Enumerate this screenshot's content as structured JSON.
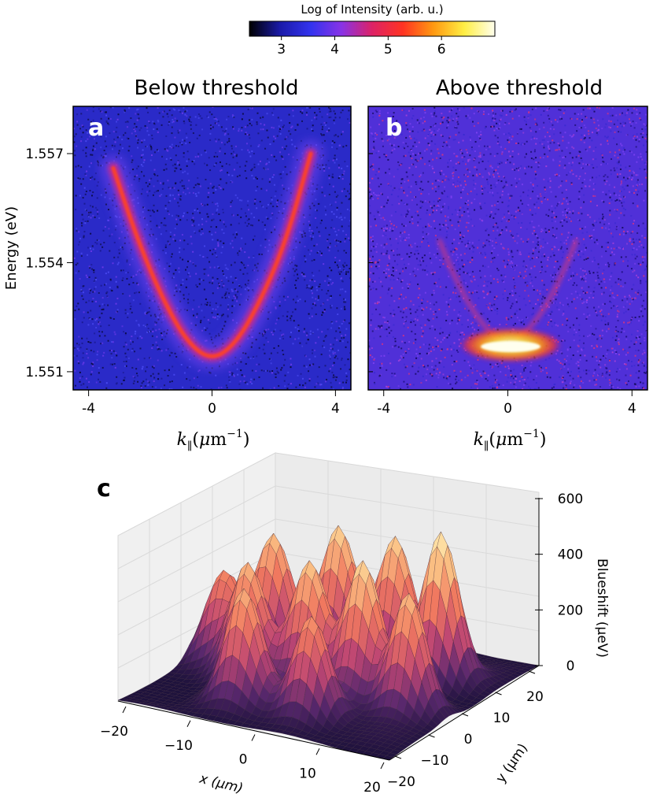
{
  "chart_data": [
    {
      "type": "heatmap",
      "colorbar": {
        "title": "Log of Intensity (arb. u.)",
        "range": [
          2.4,
          7.0
        ],
        "ticks": [
          "3",
          "4",
          "5",
          "6"
        ],
        "tick_values": [
          3,
          4,
          5,
          6
        ],
        "colormap": [
          "#000000",
          "#1a1aa8",
          "#3333ee",
          "#8833e6",
          "#dd2266",
          "#ff3322",
          "#ff9911",
          "#ffee44",
          "#ffffee"
        ]
      }
    },
    {
      "type": "heatmap",
      "panel": "a",
      "title": "Below threshold",
      "xlabel": "k_∥(μm⁻¹)",
      "ylabel": "Energy (eV)",
      "xlim": [
        -4.5,
        4.5
      ],
      "ylim": [
        1.5505,
        1.5583
      ],
      "x_ticks": [
        "-4",
        "0",
        "4"
      ],
      "x_tick_values": [
        -4,
        0,
        4
      ],
      "y_ticks": [
        "1.551",
        "1.554",
        "1.557"
      ],
      "y_tick_values": [
        1.551,
        1.554,
        1.557
      ],
      "dispersion": {
        "E0": 1.5513,
        "k_range": [
          -3.2,
          3.2
        ],
        "points": [
          {
            "k": -3.2,
            "E": 1.5566
          },
          {
            "k": -2.4,
            "E": 1.5546
          },
          {
            "k": -1.6,
            "E": 1.553
          },
          {
            "k": -0.8,
            "E": 1.5518
          },
          {
            "k": 0,
            "E": 1.5513
          },
          {
            "k": 0.8,
            "E": 1.5518
          },
          {
            "k": 1.6,
            "E": 1.553
          },
          {
            "k": 2.4,
            "E": 1.5546
          },
          {
            "k": 3.2,
            "E": 1.557
          }
        ]
      }
    },
    {
      "type": "heatmap",
      "panel": "b",
      "title": "Above threshold",
      "xlabel": "k_∥(μm⁻¹)",
      "xlim": [
        -4.5,
        4.5
      ],
      "ylim": [
        1.5505,
        1.5583
      ],
      "x_ticks": [
        "-4",
        "0",
        "4"
      ],
      "x_tick_values": [
        -4,
        0,
        4
      ],
      "condensate": {
        "E": 1.5518,
        "k_halfwidth": 1.0
      },
      "faint_branches": [
        {
          "k": -2.2,
          "E": 1.5546
        },
        {
          "k": 2.2,
          "E": 1.5546
        }
      ]
    },
    {
      "type": "surface3d",
      "panel": "c",
      "xlabel": "x (μm)",
      "ylabel": "y (μm)",
      "zlabel": "Blueshift (μeV)",
      "x_ticks": [
        "−20",
        "−10",
        "0",
        "10",
        "20"
      ],
      "y_ticks": [
        "20",
        "10",
        "0",
        "−10",
        "−20"
      ],
      "z_ticks": [
        "600",
        "400",
        "200",
        "0"
      ],
      "z_tick_values": [
        600,
        400,
        200,
        0
      ],
      "xlim": [
        -20,
        20
      ],
      "ylim": [
        -20,
        20
      ],
      "zlim": [
        0,
        600
      ],
      "peaks": [
        {
          "x": -12,
          "y": -6,
          "z": 420
        },
        {
          "x": -4,
          "y": -9,
          "z": 450
        },
        {
          "x": 4,
          "y": -10,
          "z": 460
        },
        {
          "x": 12,
          "y": -8,
          "z": 520
        },
        {
          "x": -10,
          "y": 4,
          "z": 400
        },
        {
          "x": -2,
          "y": 2,
          "z": 430
        },
        {
          "x": 6,
          "y": 2,
          "z": 450
        },
        {
          "x": 14,
          "y": 4,
          "z": 420
        },
        {
          "x": -16,
          "y": 0,
          "z": 300
        },
        {
          "x": -6,
          "y": 12,
          "z": 380
        },
        {
          "x": 4,
          "y": 12,
          "z": 360
        }
      ]
    }
  ],
  "labels": {
    "panel_a": "a",
    "panel_b": "b",
    "panel_c": "c"
  }
}
